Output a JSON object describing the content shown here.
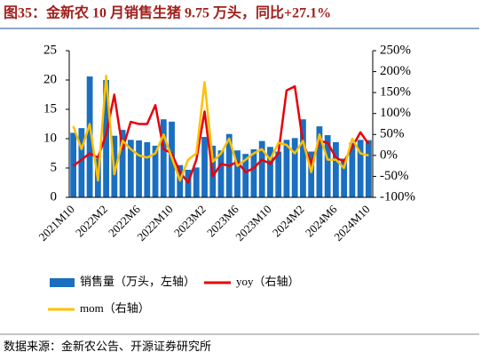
{
  "chart_data": {
    "type": "bar",
    "title": "图35：金新农 10 月销售生猪 9.75 万头，同比+27.1%",
    "source": "数据来源：金新农公告、开源证券研究所",
    "categories": [
      "2021M10",
      null,
      null,
      null,
      "2022M2",
      null,
      null,
      null,
      "2022M6",
      null,
      null,
      null,
      "2022M10",
      null,
      null,
      null,
      "2023M2",
      null,
      null,
      null,
      "2023M6",
      null,
      null,
      null,
      "2023M10",
      null,
      null,
      null,
      "2024M2",
      null,
      null,
      null,
      "2024M6",
      null,
      null,
      null,
      "2024M10"
    ],
    "ylim": [
      0,
      25
    ],
    "yticks": [
      0,
      5,
      10,
      15,
      20,
      25
    ],
    "y2lim": [
      -100,
      250
    ],
    "y2ticks": [
      {
        "value": -100,
        "label": "-100%"
      },
      {
        "value": -50,
        "label": "-50%"
      },
      {
        "value": 0,
        "label": "0%"
      },
      {
        "value": 50,
        "label": "50%"
      },
      {
        "value": 100,
        "label": "100%"
      },
      {
        "value": 150,
        "label": "150%"
      },
      {
        "value": 200,
        "label": "200%"
      },
      {
        "value": 250,
        "label": "250%"
      }
    ],
    "series": [
      {
        "name": "销售量（万头，左轴）",
        "type": "bar",
        "color": "#1a6fc0",
        "values": [
          11,
          11.8,
          20.6,
          6.6,
          20,
          10.5,
          11.5,
          9.8,
          9.7,
          9.4,
          8.8,
          13.3,
          12.9,
          5.5,
          4.7,
          5.1,
          10.3,
          8.8,
          8.0,
          10.8,
          8.0,
          7.4,
          8.2,
          9.6,
          8.6,
          7.8,
          9.8,
          10.1,
          13.3,
          7.8,
          12.1,
          10.6,
          9.4,
          6.6,
          9.3,
          9.8,
          9.75
        ]
      },
      {
        "name": "yoy（右轴）",
        "type": "line",
        "axis": "y2",
        "color": "#e8000b",
        "values": [
          -25,
          -10,
          5,
          -5,
          50,
          145,
          15,
          80,
          75,
          75,
          120,
          15,
          5,
          -40,
          -65,
          -10,
          105,
          -50,
          -20,
          -25,
          -15,
          -40,
          -30,
          -10,
          -20,
          5,
          155,
          165,
          30,
          -20,
          35,
          30,
          -5,
          -15,
          20,
          55,
          27.1
        ]
      },
      {
        "name": "mom（右轴）",
        "type": "line",
        "axis": "y2",
        "color": "#ffc000",
        "values": [
          70,
          15,
          75,
          -60,
          190,
          -45,
          35,
          15,
          0,
          -5,
          5,
          50,
          -5,
          -60,
          -10,
          5,
          175,
          -15,
          5,
          40,
          -25,
          -10,
          5,
          15,
          -10,
          30,
          25,
          5,
          35,
          -40,
          50,
          -10,
          -10,
          -30,
          40,
          5,
          0
        ]
      }
    ]
  }
}
